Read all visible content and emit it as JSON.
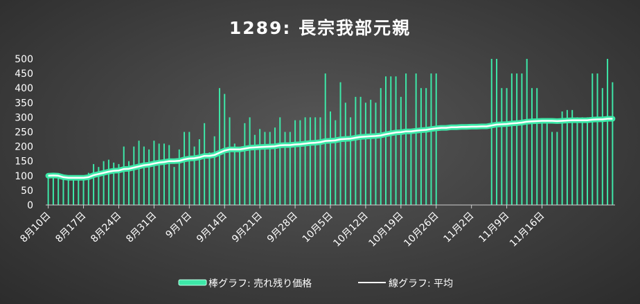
{
  "chart_data": {
    "type": "bar",
    "title": "1289: 長宗我部元親",
    "ylim": [
      0,
      500
    ],
    "yticks": [
      0,
      50,
      100,
      150,
      200,
      250,
      300,
      350,
      400,
      450,
      500
    ],
    "x_start": "8月10日",
    "xtick_labels": [
      "8月10日",
      "8月17日",
      "8月24日",
      "8月31日",
      "9月7日",
      "9月14日",
      "9月21日",
      "9月28日",
      "10月5日",
      "10月12日",
      "10月19日",
      "10月26日",
      "11月2日",
      "11月9日",
      "11月16日"
    ],
    "series": [
      {
        "name": "棒グラフ: 売れ残り価格",
        "type": "bar",
        "color": "#3de8a8",
        "values": [
          100,
          105,
          95,
          95,
          95,
          95,
          95,
          95,
          110,
          140,
          130,
          150,
          155,
          145,
          140,
          200,
          150,
          200,
          220,
          200,
          190,
          220,
          210,
          210,
          205,
          130,
          190,
          250,
          250,
          200,
          225,
          280,
          180,
          235,
          400,
          380,
          300,
          210,
          190,
          280,
          300,
          240,
          260,
          250,
          250,
          265,
          300,
          250,
          250,
          290,
          290,
          300,
          300,
          300,
          300,
          450,
          320,
          290,
          420,
          350,
          300,
          370,
          370,
          350,
          360,
          350,
          400,
          440,
          440,
          440,
          370,
          450,
          260,
          450,
          400,
          400,
          450,
          450,
          0,
          0,
          0,
          0,
          0,
          0,
          0,
          0,
          0,
          0,
          500,
          500,
          400,
          400,
          450,
          450,
          450,
          500,
          400,
          400,
          280,
          280,
          250,
          250,
          320,
          325,
          325,
          300,
          300,
          300,
          450,
          450,
          400,
          500,
          420
        ]
      },
      {
        "name": "線グラフ: 平均",
        "type": "line",
        "color": "#ffffff",
        "values": [
          100,
          101,
          100,
          95,
          93,
          93,
          93,
          93,
          95,
          102,
          106,
          110,
          114,
          117,
          118,
          123,
          124,
          128,
          132,
          136,
          138,
          142,
          145,
          147,
          150,
          150,
          151,
          156,
          159,
          160,
          163,
          168,
          168,
          171,
          179,
          186,
          190,
          190,
          190,
          193,
          196,
          197,
          198,
          199,
          200,
          201,
          204,
          205,
          205,
          207,
          208,
          210,
          212,
          213,
          215,
          219,
          220,
          221,
          225,
          226,
          227,
          230,
          233,
          234,
          235,
          236,
          238,
          242,
          245,
          248,
          249,
          252,
          252,
          254,
          256,
          257,
          260,
          262,
          264,
          264,
          266,
          266,
          267,
          267,
          268,
          268,
          269,
          269,
          272,
          275,
          276,
          277,
          279,
          280,
          282,
          285,
          286,
          287,
          288,
          288,
          288,
          287,
          288,
          289,
          290,
          290,
          290,
          290,
          292,
          293,
          293,
          295,
          295
        ]
      }
    ],
    "legend_position": "bottom",
    "grid": false
  }
}
